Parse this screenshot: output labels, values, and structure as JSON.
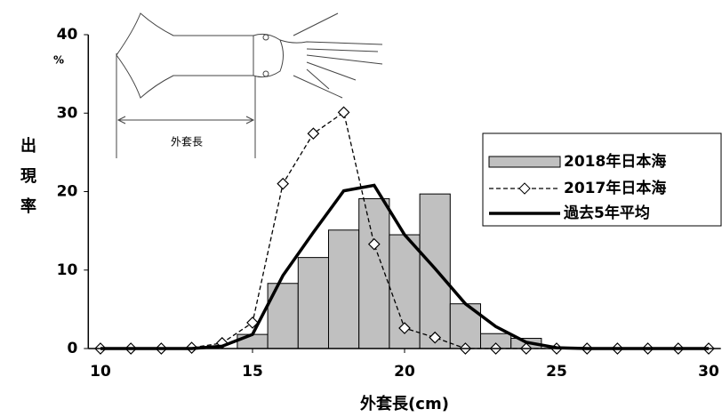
{
  "chart_data": {
    "type": "combo",
    "y_label": "出現率",
    "y_unit": "%",
    "x_label": "外套長(cm)",
    "annotation": "外套長",
    "xlim": [
      9.6,
      30.4
    ],
    "xticks": [
      10,
      15,
      20,
      25,
      30
    ],
    "ylim": [
      0,
      40
    ],
    "yticks": [
      0,
      10,
      20,
      30,
      40
    ],
    "histogram": {
      "name": "2018年日本海",
      "color": "#c0c0c0",
      "bins": [
        14.5,
        15.5,
        16.5,
        17.5,
        18.5,
        19.5,
        20.5,
        21.5,
        22.5,
        23.5,
        24.5
      ],
      "counts": [
        1.8,
        8.3,
        11.6,
        15.1,
        19.1,
        14.5,
        19.7,
        5.7,
        1.9,
        1.3
      ]
    },
    "x": [
      10,
      11,
      12,
      13,
      14,
      15,
      16,
      17,
      18,
      19,
      20,
      21,
      22,
      23,
      24,
      25,
      26,
      27,
      28,
      29,
      30
    ],
    "series": [
      {
        "name": "2017年日本海",
        "color": "#000000",
        "style": "dashed",
        "marker": "diamond",
        "values": [
          0,
          0,
          0,
          0.1,
          0.7,
          3.3,
          21,
          27.4,
          30.1,
          13.3,
          2.6,
          1.4,
          0,
          0,
          0,
          0,
          0,
          0,
          0,
          0,
          0
        ]
      },
      {
        "name": "過去5年平均",
        "color": "#000000",
        "style": "solid",
        "marker": "none",
        "values": [
          0,
          0,
          0,
          0,
          0.3,
          1.8,
          9.3,
          14.8,
          20.1,
          20.8,
          14.5,
          10.2,
          5.7,
          2.8,
          0.8,
          0.1,
          0,
          0,
          0,
          0,
          0
        ]
      }
    ]
  }
}
